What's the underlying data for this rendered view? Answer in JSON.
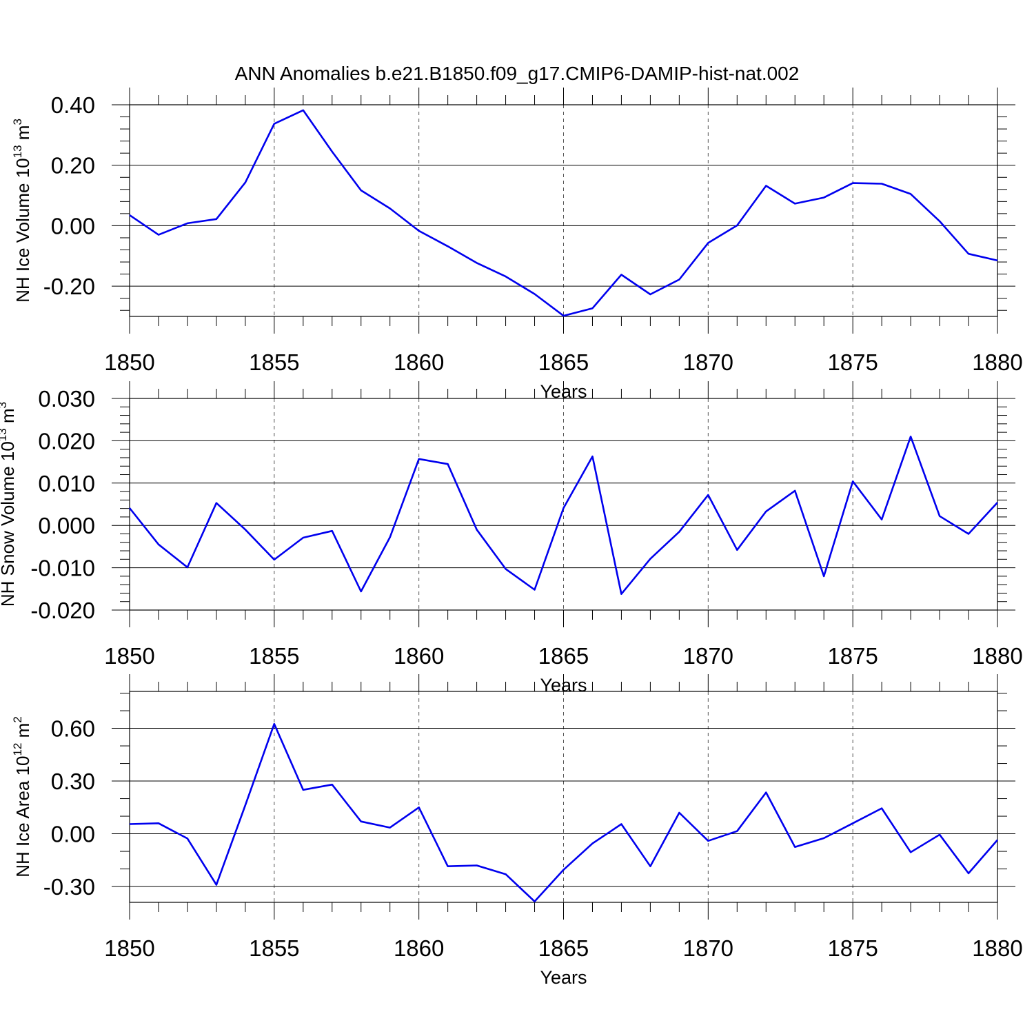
{
  "figure_title": "ANN Anomalies b.e21.B1850.f09_g17.CMIP6-DAMIP-hist-nat.002",
  "chart_data": [
    {
      "type": "line",
      "title": "ANN Anomalies b.e21.B1850.f09_g17.CMIP6-DAMIP-hist-nat.002",
      "xlabel": "Years",
      "ylabel": {
        "base": "NH Ice Volume 10",
        "exp": "13",
        "unit": " m",
        "unit_exp": "3"
      },
      "xlim": [
        1850,
        1880
      ],
      "ylim": [
        -0.3,
        0.4
      ],
      "x_ticks": [
        1850,
        1855,
        1860,
        1865,
        1870,
        1875,
        1880
      ],
      "x_tick_labels": [
        "1850",
        "1855",
        "1860",
        "1865",
        "1870",
        "1875",
        "1880"
      ],
      "y_ticks": [
        -0.2,
        0.0,
        0.2,
        0.4
      ],
      "y_tick_labels": [
        "-0.20",
        "0.00",
        "0.20",
        "0.40"
      ],
      "y_minor_step": 0.04,
      "grid": "dashed vertical at major x ticks",
      "line_color": "#0000ee",
      "x": [
        1850,
        1851,
        1852,
        1853,
        1854,
        1855,
        1856,
        1857,
        1858,
        1859,
        1860,
        1861,
        1862,
        1863,
        1864,
        1865,
        1866,
        1867,
        1868,
        1869,
        1870,
        1871,
        1872,
        1873,
        1874,
        1875,
        1876,
        1877,
        1878,
        1879,
        1880
      ],
      "values": [
        0.035,
        -0.03,
        0.008,
        0.022,
        0.143,
        0.337,
        0.382,
        0.245,
        0.117,
        0.057,
        -0.017,
        -0.068,
        -0.123,
        -0.168,
        -0.226,
        -0.298,
        -0.273,
        -0.162,
        -0.227,
        -0.178,
        -0.057,
        0.001,
        0.132,
        0.073,
        0.093,
        0.141,
        0.139,
        0.105,
        0.015,
        -0.093,
        -0.115
      ]
    },
    {
      "type": "line",
      "xlabel": "Years",
      "ylabel": {
        "base": "NH Snow Volume 10",
        "exp": "13",
        "unit": " m",
        "unit_exp": "3"
      },
      "xlim": [
        1850,
        1880
      ],
      "ylim": [
        -0.02,
        0.03
      ],
      "x_ticks": [
        1850,
        1855,
        1860,
        1865,
        1870,
        1875,
        1880
      ],
      "x_tick_labels": [
        "1850",
        "1855",
        "1860",
        "1865",
        "1870",
        "1875",
        "1880"
      ],
      "y_ticks": [
        -0.02,
        -0.01,
        0.0,
        0.01,
        0.02,
        0.03
      ],
      "y_tick_labels": [
        "-0.020",
        "-0.010",
        "0.000",
        "0.010",
        "0.020",
        "0.030"
      ],
      "y_minor_step": 0.002,
      "grid": "dashed vertical at major x ticks",
      "line_color": "#0000ee",
      "x": [
        1850,
        1851,
        1852,
        1853,
        1854,
        1855,
        1856,
        1857,
        1858,
        1859,
        1860,
        1861,
        1862,
        1863,
        1864,
        1865,
        1866,
        1867,
        1868,
        1869,
        1870,
        1871,
        1872,
        1873,
        1874,
        1875,
        1876,
        1877,
        1878,
        1879,
        1880
      ],
      "values": [
        0.0041,
        -0.0045,
        -0.0099,
        0.0053,
        -0.001,
        -0.0081,
        -0.0029,
        -0.0013,
        -0.0156,
        -0.0028,
        0.0157,
        0.0145,
        -0.001,
        -0.0103,
        -0.0152,
        0.0041,
        0.0163,
        -0.0162,
        -0.0079,
        -0.0015,
        0.0072,
        -0.0058,
        0.0033,
        0.0082,
        -0.012,
        0.0104,
        0.0014,
        0.021,
        0.0022,
        -0.002,
        0.0054
      ]
    },
    {
      "type": "line",
      "xlabel": "Years",
      "ylabel": {
        "base": "NH Ice Area 10",
        "exp": "12",
        "unit": " m",
        "unit_exp": "2"
      },
      "xlim": [
        1850,
        1880
      ],
      "ylim": [
        -0.39,
        0.81
      ],
      "x_ticks": [
        1850,
        1855,
        1860,
        1865,
        1870,
        1875,
        1880
      ],
      "x_tick_labels": [
        "1850",
        "1855",
        "1860",
        "1865",
        "1870",
        "1875",
        "1880"
      ],
      "y_ticks": [
        -0.3,
        0.0,
        0.3,
        0.6
      ],
      "y_tick_labels": [
        "-0.30",
        "0.00",
        "0.30",
        "0.60"
      ],
      "y_minor_step": 0.1,
      "grid": "dashed vertical at major x ticks",
      "line_color": "#0000ee",
      "x": [
        1850,
        1851,
        1852,
        1853,
        1854,
        1855,
        1856,
        1857,
        1858,
        1859,
        1860,
        1861,
        1862,
        1863,
        1864,
        1865,
        1866,
        1867,
        1868,
        1869,
        1870,
        1871,
        1872,
        1873,
        1874,
        1875,
        1876,
        1877,
        1878,
        1879,
        1880
      ],
      "values": [
        0.055,
        0.06,
        -0.027,
        -0.29,
        0.163,
        0.625,
        0.25,
        0.28,
        0.07,
        0.035,
        0.15,
        -0.185,
        -0.18,
        -0.23,
        -0.385,
        -0.205,
        -0.055,
        0.055,
        -0.185,
        0.12,
        -0.04,
        0.015,
        0.235,
        -0.075,
        -0.025,
        0.06,
        0.145,
        -0.105,
        -0.005,
        -0.225,
        -0.035
      ]
    }
  ]
}
